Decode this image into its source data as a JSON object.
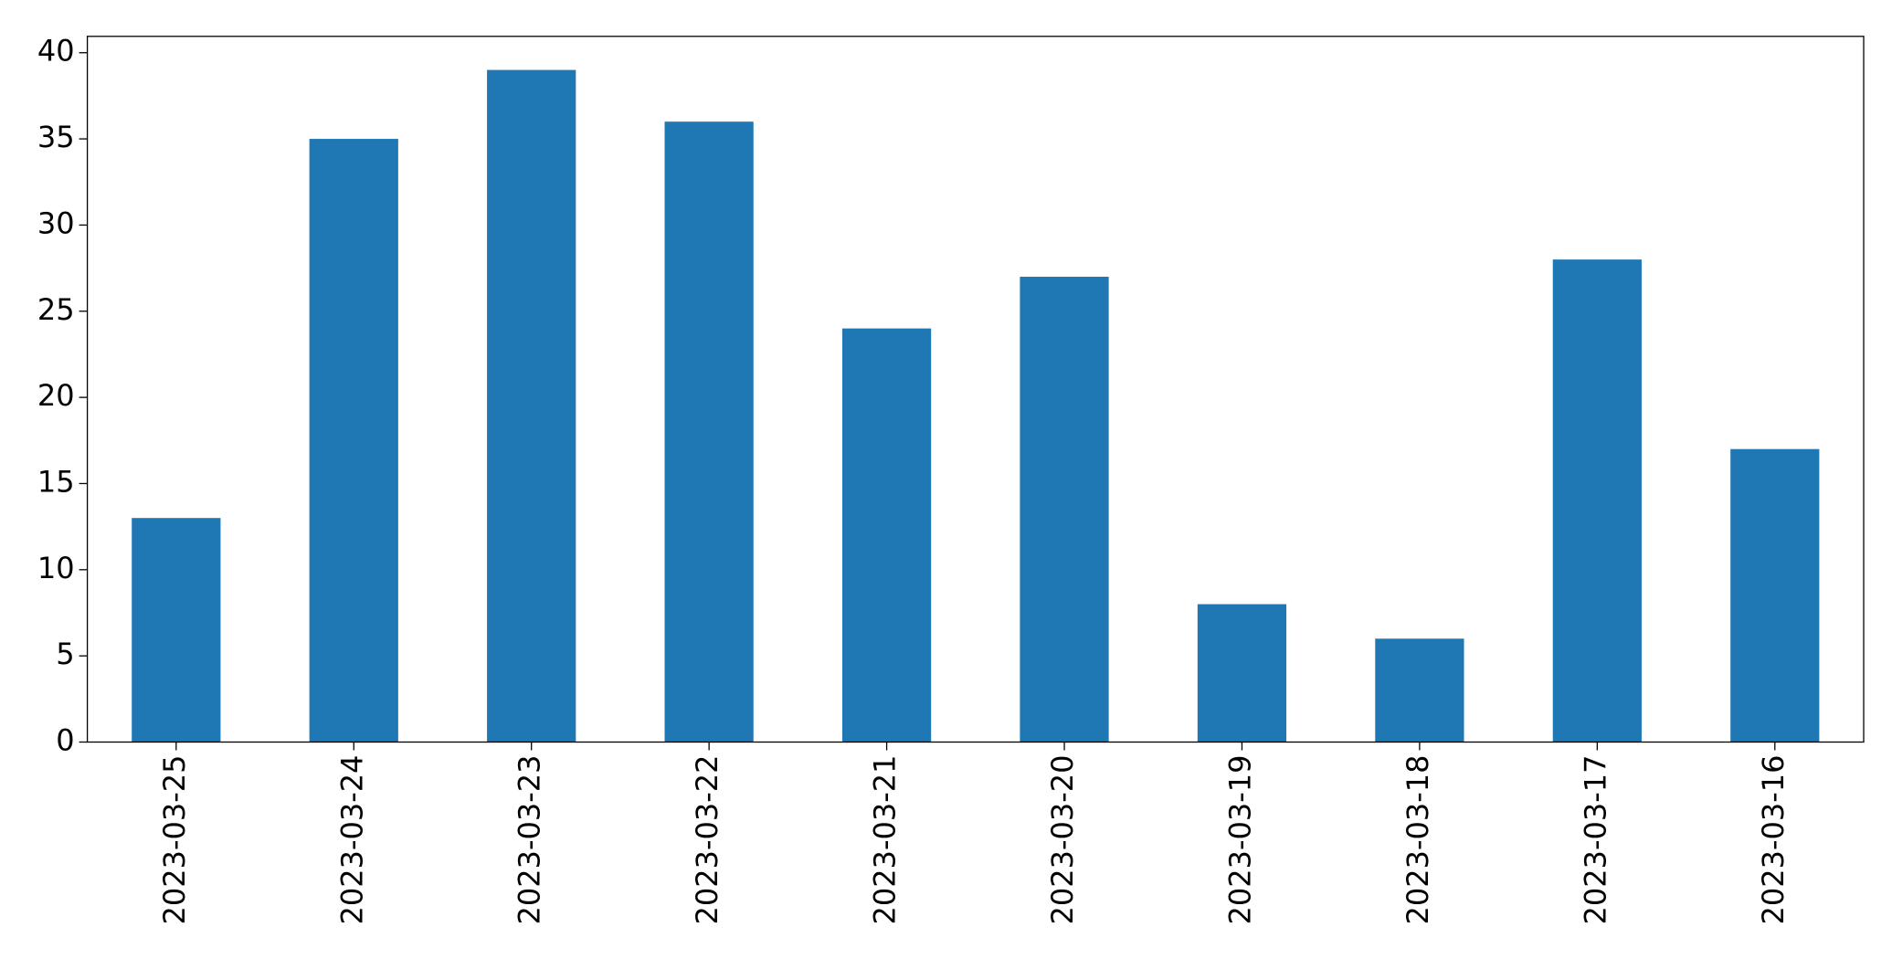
{
  "chart_data": {
    "type": "bar",
    "categories": [
      "2023-03-25",
      "2023-03-24",
      "2023-03-23",
      "2023-03-22",
      "2023-03-21",
      "2023-03-20",
      "2023-03-19",
      "2023-03-18",
      "2023-03-17",
      "2023-03-16"
    ],
    "values": [
      13,
      35,
      39,
      36,
      24,
      27,
      8,
      6,
      28,
      17
    ],
    "color": "#1f77b4",
    "ylim": [
      0,
      40.95
    ],
    "yticks": [
      0,
      5,
      10,
      15,
      20,
      25,
      30,
      35,
      40
    ],
    "grid": false
  }
}
